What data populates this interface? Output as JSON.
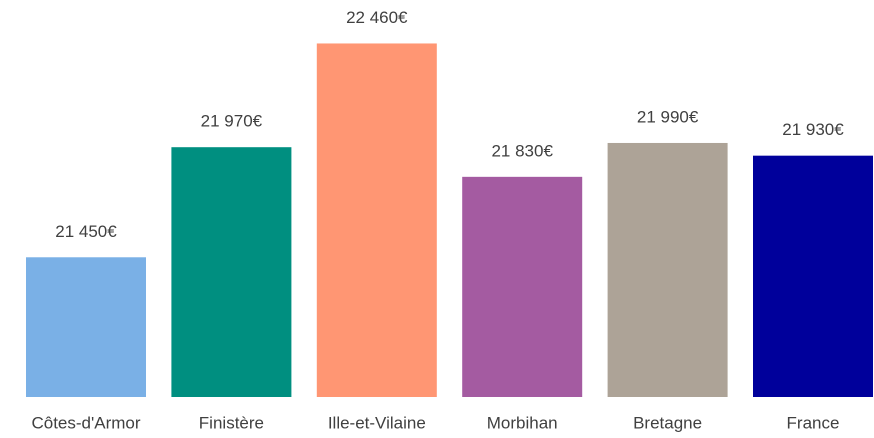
{
  "chart_data": {
    "type": "bar",
    "categories": [
      "Côtes-d'Armor",
      "Finistère",
      "Ille-et-Vilaine",
      "Morbihan",
      "Bretagne",
      "France"
    ],
    "values": [
      21450,
      21970,
      22460,
      21830,
      21990,
      21930
    ],
    "value_labels": [
      "21 450€",
      "21 970€",
      "22 460€",
      "21 830€",
      "21 990€",
      "21 930€"
    ],
    "colors": [
      "#7ab0e6",
      "#008f80",
      "#ff9673",
      "#a45ba1",
      "#ada397",
      "#00009b"
    ],
    "ylim": [
      20790,
      22500
    ]
  }
}
